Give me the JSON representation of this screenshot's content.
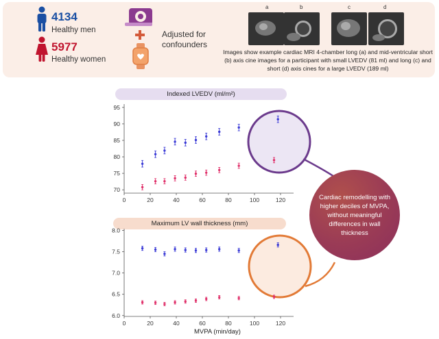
{
  "header": {
    "men_count": "4134",
    "men_label": "Healthy men",
    "women_count": "5977",
    "women_label": "Healthy women",
    "plus": "+",
    "adjusted_line1": "Adjusted for",
    "adjusted_line2": "confounders",
    "mri_letters": [
      "a",
      "b",
      "c",
      "d"
    ],
    "mri_caption": "Images show example cardiac MRI 4-chamber long (a) and mid-ventricular short (b) axis cine images for a participant with small LVEDV (81 ml) and long (c) and short (d) axis cines for a large LVEDV (189 ml)"
  },
  "conclusion": "Cardiac remodelling with higher deciles of MVPA, without meaningful differences in wall thickness",
  "colors": {
    "men": "#1a4fa3",
    "women": "#c0142e",
    "series_blue": "#3a3ad6",
    "series_red": "#e0306a",
    "circle_top": "#6b3a8c",
    "circle_bottom": "#e27a36",
    "pill_top": "#e6ddf0",
    "pill_bottom": "#f7dccd",
    "banner": "#fbeee7"
  },
  "chart_data": [
    {
      "type": "scatter",
      "title": "Indexed LVEDV (ml/m²)",
      "xlabel": "",
      "ylabel": "",
      "xlim": [
        0,
        130
      ],
      "ylim": [
        69,
        96
      ],
      "xticks": [
        0,
        20,
        40,
        60,
        80,
        100,
        120
      ],
      "yticks": [
        70,
        75,
        80,
        85,
        90,
        95
      ],
      "grid": false,
      "series": [
        {
          "x": [
            14,
            24,
            31,
            39,
            47,
            55,
            63,
            73,
            88,
            118
          ],
          "y": [
            77.9,
            80.8,
            81.9,
            84.6,
            84.3,
            85.1,
            86.2,
            87.6,
            88.9,
            91.4
          ],
          "err": [
            1.0,
            1.0,
            1.0,
            1.0,
            1.0,
            1.0,
            1.0,
            1.0,
            1.0,
            1.0
          ]
        },
        {
          "x": [
            14,
            24,
            31,
            39,
            47,
            55,
            63,
            73,
            88,
            115
          ],
          "y": [
            70.8,
            72.6,
            72.6,
            73.5,
            73.7,
            74.9,
            75.2,
            76.0,
            77.3,
            79.0
          ],
          "err": [
            0.8,
            0.8,
            0.8,
            0.8,
            0.8,
            0.8,
            0.8,
            0.8,
            0.8,
            0.8
          ]
        }
      ]
    },
    {
      "type": "scatter",
      "title": "Maximum LV wall thickness (mm)",
      "xlabel": "MVPA (min/day)",
      "ylabel": "",
      "xlim": [
        0,
        130
      ],
      "ylim": [
        5.98,
        8.04
      ],
      "xticks": [
        0,
        20,
        40,
        60,
        80,
        100,
        120
      ],
      "yticks": [
        6.0,
        6.5,
        7.0,
        7.5,
        8.0
      ],
      "yticklabels": [
        "6.0",
        "6.5",
        "7.0",
        "7.5",
        "8.0"
      ],
      "grid": false,
      "series": [
        {
          "x": [
            14,
            24,
            31,
            39,
            47,
            55,
            63,
            73,
            88,
            118
          ],
          "y": [
            7.58,
            7.55,
            7.45,
            7.56,
            7.54,
            7.53,
            7.54,
            7.56,
            7.53,
            7.66
          ],
          "err": [
            0.05,
            0.05,
            0.05,
            0.05,
            0.05,
            0.05,
            0.05,
            0.05,
            0.05,
            0.05
          ]
        },
        {
          "x": [
            14,
            24,
            31,
            39,
            47,
            55,
            63,
            73,
            88,
            115
          ],
          "y": [
            6.31,
            6.3,
            6.27,
            6.31,
            6.33,
            6.35,
            6.39,
            6.43,
            6.41,
            6.44
          ],
          "err": [
            0.04,
            0.04,
            0.04,
            0.04,
            0.04,
            0.04,
            0.04,
            0.04,
            0.04,
            0.04
          ]
        }
      ]
    }
  ]
}
